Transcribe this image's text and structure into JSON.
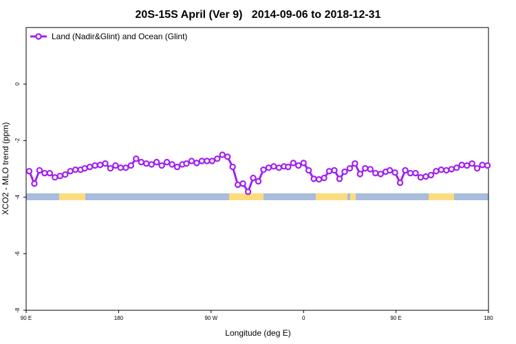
{
  "chart_data": {
    "type": "line",
    "title": "20S-15S April (Ver 9)   2014-09-06 to 2018-12-31",
    "x_label": "Longitude (deg E)",
    "y_label": "XCO2 - MLO trend (ppm)",
    "xlim": [
      90,
      540
    ],
    "xticks": [
      {
        "value": 90,
        "label": "90 E"
      },
      180,
      {
        "value": 270,
        "label": "90 W"
      },
      {
        "value": 360,
        "label": "0"
      },
      {
        "value": 450,
        "label": "90 E"
      },
      {
        "value": 540,
        "label": "180"
      }
    ],
    "ylim": [
      -8,
      2
    ],
    "yticks": [
      -8,
      -6,
      -4,
      -2,
      0
    ],
    "legend": "top-left",
    "x": [
      93,
      98,
      103,
      108,
      113,
      118,
      123,
      128,
      133,
      138,
      143,
      147,
      152,
      157,
      162,
      167,
      172,
      177,
      182,
      187,
      192,
      197,
      202,
      207,
      212,
      217,
      222,
      227,
      232,
      237,
      242,
      246,
      251,
      256,
      261,
      266,
      271,
      276,
      281,
      286,
      291,
      296,
      301,
      306,
      311,
      316,
      321,
      326,
      331,
      336,
      341,
      345,
      350,
      355,
      360,
      365,
      370,
      375,
      380,
      385,
      390,
      395,
      400,
      405,
      410,
      415,
      420,
      425,
      430,
      435,
      440,
      444,
      449,
      454,
      459,
      464,
      469,
      474,
      479,
      484,
      489,
      494,
      499,
      504,
      509,
      514,
      519,
      524,
      529,
      534,
      539
    ],
    "series": [
      {
        "name": "Land (Nadir&Glint) and Ocean (Glint)",
        "color": "#a020f0",
        "values": [
          -3.08,
          -3.52,
          -3.05,
          -3.15,
          -3.15,
          -3.3,
          -3.25,
          -3.2,
          -3.08,
          -3.03,
          -3.03,
          -2.98,
          -2.93,
          -2.88,
          -2.86,
          -2.81,
          -2.98,
          -2.88,
          -2.96,
          -2.96,
          -2.88,
          -2.64,
          -2.76,
          -2.81,
          -2.84,
          -2.76,
          -2.88,
          -2.76,
          -2.84,
          -2.93,
          -2.84,
          -2.81,
          -2.72,
          -2.79,
          -2.72,
          -2.72,
          -2.72,
          -2.64,
          -2.5,
          -2.57,
          -2.93,
          -3.56,
          -3.52,
          -3.81,
          -3.32,
          -3.44,
          -3.03,
          -2.96,
          -2.91,
          -2.96,
          -2.91,
          -2.93,
          -2.79,
          -2.88,
          -2.79,
          -3.05,
          -3.35,
          -3.37,
          -3.32,
          -3.08,
          -3.05,
          -3.35,
          -3.1,
          -2.98,
          -2.81,
          -3.18,
          -2.98,
          -3.01,
          -3.15,
          -3.18,
          -3.1,
          -3.05,
          -3.13,
          -3.49,
          -3.05,
          -3.15,
          -3.15,
          -3.3,
          -3.27,
          -3.22,
          -3.08,
          -3.03,
          -3.05,
          -3.01,
          -2.96,
          -2.86,
          -2.88,
          -2.81,
          -2.98,
          -2.86,
          -2.88
        ]
      }
    ]
  }
}
